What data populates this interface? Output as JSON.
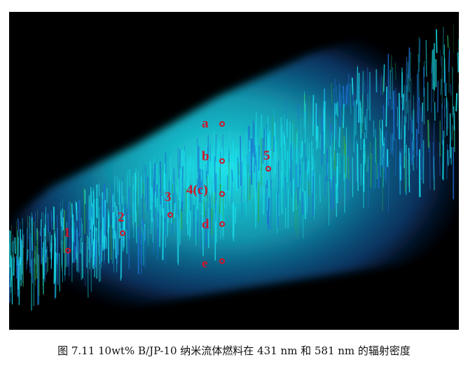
{
  "image_alt": "10wt% B/JP-10 纳米流体燃料火焰在 431 nm 和 581 nm 的辐射密度图像",
  "colors": {
    "background": "#000000",
    "flame_core": "#19e2ee",
    "flame_edge": "#1a6fd0",
    "flame_green": "#2ca84a",
    "marker": "#d0152a"
  },
  "markers": [
    {
      "id": "1",
      "label": "1"
    },
    {
      "id": "2",
      "label": "2"
    },
    {
      "id": "3",
      "label": "3"
    },
    {
      "id": "4c",
      "label": "4(c)"
    },
    {
      "id": "5",
      "label": "5"
    },
    {
      "id": "a",
      "label": "a"
    },
    {
      "id": "b",
      "label": "b"
    },
    {
      "id": "d",
      "label": "d"
    },
    {
      "id": "e",
      "label": "e"
    }
  ],
  "caption": "图 7.11 10wt% B/JP-10 纳米流体燃料在 431 nm 和 581 nm 的辐射密度"
}
